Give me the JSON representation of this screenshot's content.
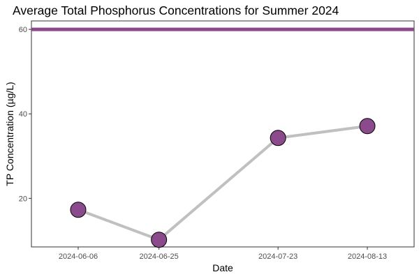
{
  "chart_data": {
    "type": "line",
    "title": "Average Total Phosphorus Concentrations for Summer 2024",
    "xlabel": "Date",
    "ylabel": "TP Concentration (µg/L)",
    "categories": [
      "2024-06-06",
      "2024-06-25",
      "2024-07-23",
      "2024-08-13"
    ],
    "x": [
      "2024-06-06",
      "2024-06-25",
      "2024-07-23",
      "2024-08-13"
    ],
    "values": [
      17.3,
      10.2,
      34.3,
      37.1
    ],
    "y_ticks": [
      20,
      40,
      60
    ],
    "ylim": [
      8.5,
      62.0
    ],
    "xlim": [
      "2024-05-26",
      "2024-08-24"
    ],
    "reference_line": {
      "y": 60,
      "color": "#8B4A8B"
    },
    "line_color": "#c0c0c0",
    "marker_fill": "#8B4A8B",
    "marker_stroke": "#000000",
    "grid": false,
    "legend": "none"
  }
}
